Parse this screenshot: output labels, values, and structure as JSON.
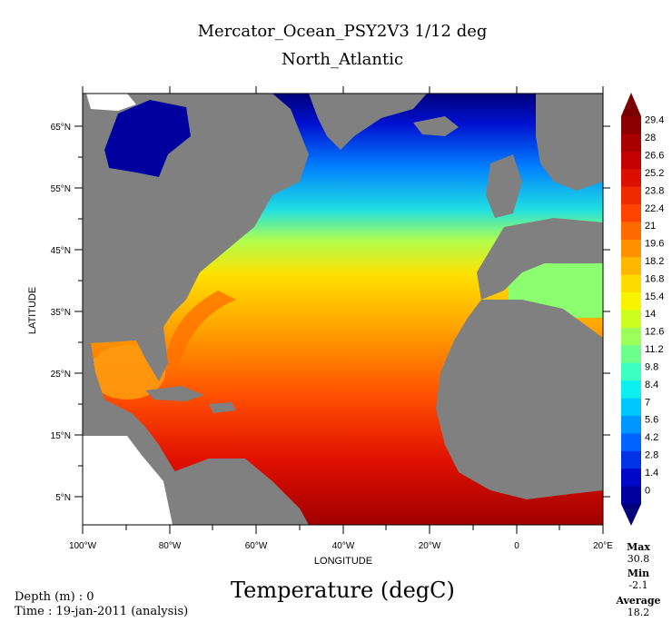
{
  "title": "Mercator_Ocean_PSY2V3 1/12 deg",
  "subtitle": "North_Atlantic",
  "map": {
    "xlabel": "LONGITUDE",
    "ylabel": "LATITUDE",
    "lon_ticks": [
      "100°W",
      "80°W",
      "60°W",
      "40°W",
      "20°W",
      "0",
      "20°E"
    ],
    "lat_ticks": [
      "65°N",
      "55°N",
      "45°N",
      "35°N",
      "25°N",
      "15°N",
      "5°N"
    ],
    "land_color": "#808080"
  },
  "colorbar": {
    "labels": [
      "29.4",
      "28",
      "26.6",
      "25.2",
      "23.8",
      "22.4",
      "21",
      "19.6",
      "18.2",
      "16.8",
      "15.4",
      "14",
      "12.6",
      "11.2",
      "9.8",
      "8.4",
      "7",
      "5.6",
      "4.2",
      "2.8",
      "1.4",
      "0"
    ],
    "colors": [
      "#8b0000",
      "#a80000",
      "#c40000",
      "#dd1000",
      "#ee2a00",
      "#ff4400",
      "#ff6a00",
      "#ff9200",
      "#ffb800",
      "#ffdc00",
      "#f8f400",
      "#ccff20",
      "#9cff5a",
      "#6cff8c",
      "#3cffc0",
      "#0ef0f0",
      "#00c8ff",
      "#0096ff",
      "#0064ff",
      "#0032e6",
      "#0008c8",
      "#00009e"
    ],
    "top_color": "#7a0000",
    "bottom_color": "#00007a"
  },
  "variable_title": "Temperature (degC)",
  "depth_label": "Depth (m) : 0",
  "time_label": "Time : 19-jan-2011 (analysis)",
  "stats": {
    "max_label": "Max",
    "max_value": "30.8",
    "min_label": "Min",
    "min_value": "-2.1",
    "avg_label": "Average",
    "avg_value": "18.2"
  }
}
